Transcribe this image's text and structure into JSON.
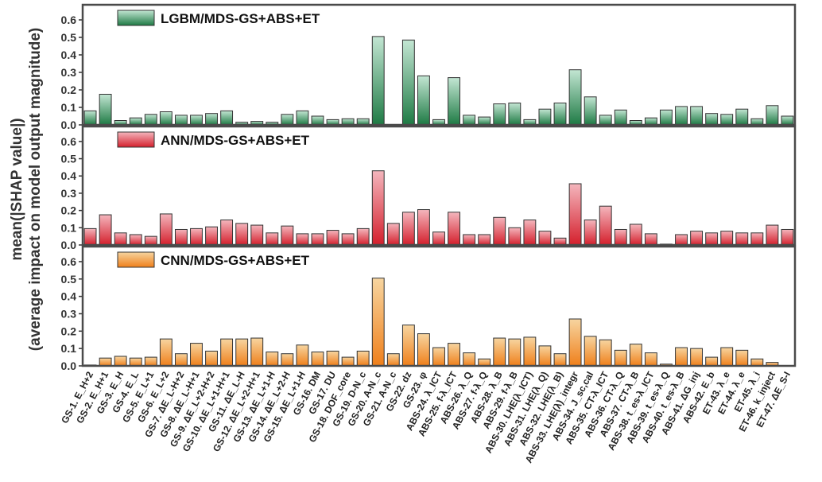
{
  "chart_data": {
    "type": "bar",
    "ylabel_line1": "mean(|SHAP value|)",
    "ylabel_line2": "(average impact on model output magnitude)",
    "ylim": [
      0,
      0.65
    ],
    "yticks": [
      "0.0",
      "0.1",
      "0.2",
      "0.3",
      "0.4",
      "0.5",
      "0.6"
    ],
    "categories": [
      "GS-1. E_H+2",
      "GS-2. E_H+1",
      "GS-3. E_H",
      "GS-4. E_L",
      "GS-5. E_L+1",
      "GS-6. E_L+2",
      "GS-7. ΔE_L-H+2",
      "GS-8. ΔE_L-H+1",
      "GS-9. ΔE_L+2-H+2",
      "GS-10. ΔE_L+1-H+1",
      "GS-11. ΔE_L-H",
      "GS-12. ΔE_L+2-H+1",
      "GS-13. ΔE_L+1-H",
      "GS-14. ΔE_L+2-H",
      "GS-15. ΔE_L+1-H",
      "GS-16. DM",
      "GS-17. DU",
      "GS-18. DOF_core",
      "GS-19. D-N_c",
      "GS-20. A-N_c",
      "GS-21. A-N_c",
      "GS-22. dz",
      "GS-23. φ",
      "ABS-24. λ_ICT",
      "ABS-25. f-λ_ICT",
      "ABS-26. λ_Q",
      "ABS-27. f-λ_Q",
      "ABS-28. λ_B",
      "ABS-29. f-λ_B",
      "ABS-30. LHE(λ_ICT)",
      "ABS-31. LHE(λ_Q)",
      "ABS-32. LHE(λ_B)",
      "ABS-33. LHE(λ)_integr",
      "ABS-34. J_sc,cal",
      "ABS-35. CT-λ_ICT",
      "ABS-36. CT-λ_Q",
      "ABS-37. CT-λ_B",
      "ABS-38. t_es-λ_ICT",
      "ABS-39. t_es-λ_Q",
      "ABS-40. t_es-λ_B",
      "ABS-41. ΔG_inj",
      "ABS-42. E_b",
      "ET-43. λ_e",
      "ET-44. λ_e",
      "ET-45. λ_i",
      "ET-46. k_inject",
      "ET-47. ΔE_S-I"
    ],
    "series": [
      {
        "name": "LGBM/MDS-GS+ABS+ET",
        "color_top": "#c3e6d3",
        "color_bottom": "#1e7a44",
        "values": [
          0.08,
          0.175,
          0.025,
          0.04,
          0.06,
          0.075,
          0.055,
          0.055,
          0.065,
          0.08,
          0.015,
          0.02,
          0.015,
          0.06,
          0.08,
          0.05,
          0.03,
          0.035,
          0.035,
          0.505,
          0.0,
          0.485,
          0.28,
          0.03,
          0.27,
          0.055,
          0.045,
          0.12,
          0.125,
          0.03,
          0.09,
          0.125,
          0.315,
          0.16,
          0.055,
          0.085,
          0.025,
          0.04,
          0.085,
          0.105,
          0.105,
          0.065,
          0.06,
          0.09,
          0.035,
          0.11,
          0.05
        ]
      },
      {
        "name": "ANN/MDS-GS+ABS+ET",
        "color_top": "#f4b6bd",
        "color_bottom": "#d41f2c",
        "values": [
          0.095,
          0.175,
          0.07,
          0.06,
          0.05,
          0.18,
          0.09,
          0.095,
          0.105,
          0.145,
          0.125,
          0.115,
          0.07,
          0.11,
          0.065,
          0.065,
          0.085,
          0.065,
          0.095,
          0.43,
          0.125,
          0.19,
          0.205,
          0.075,
          0.19,
          0.06,
          0.06,
          0.16,
          0.1,
          0.145,
          0.08,
          0.04,
          0.355,
          0.145,
          0.225,
          0.09,
          0.12,
          0.065,
          0.005,
          0.06,
          0.08,
          0.07,
          0.08,
          0.07,
          0.07,
          0.115,
          0.09
        ]
      },
      {
        "name": "CNN/MDS-GS+ABS+ET",
        "color_top": "#f7d5a0",
        "color_bottom": "#ef7f1a",
        "values": [
          0.005,
          0.045,
          0.055,
          0.045,
          0.05,
          0.155,
          0.07,
          0.13,
          0.085,
          0.155,
          0.155,
          0.16,
          0.08,
          0.07,
          0.12,
          0.08,
          0.085,
          0.05,
          0.085,
          0.505,
          0.07,
          0.235,
          0.185,
          0.105,
          0.13,
          0.075,
          0.04,
          0.16,
          0.155,
          0.165,
          0.115,
          0.07,
          0.27,
          0.17,
          0.15,
          0.09,
          0.125,
          0.075,
          0.01,
          0.105,
          0.1,
          0.05,
          0.105,
          0.09,
          0.04,
          0.02,
          0.0
        ]
      }
    ]
  }
}
